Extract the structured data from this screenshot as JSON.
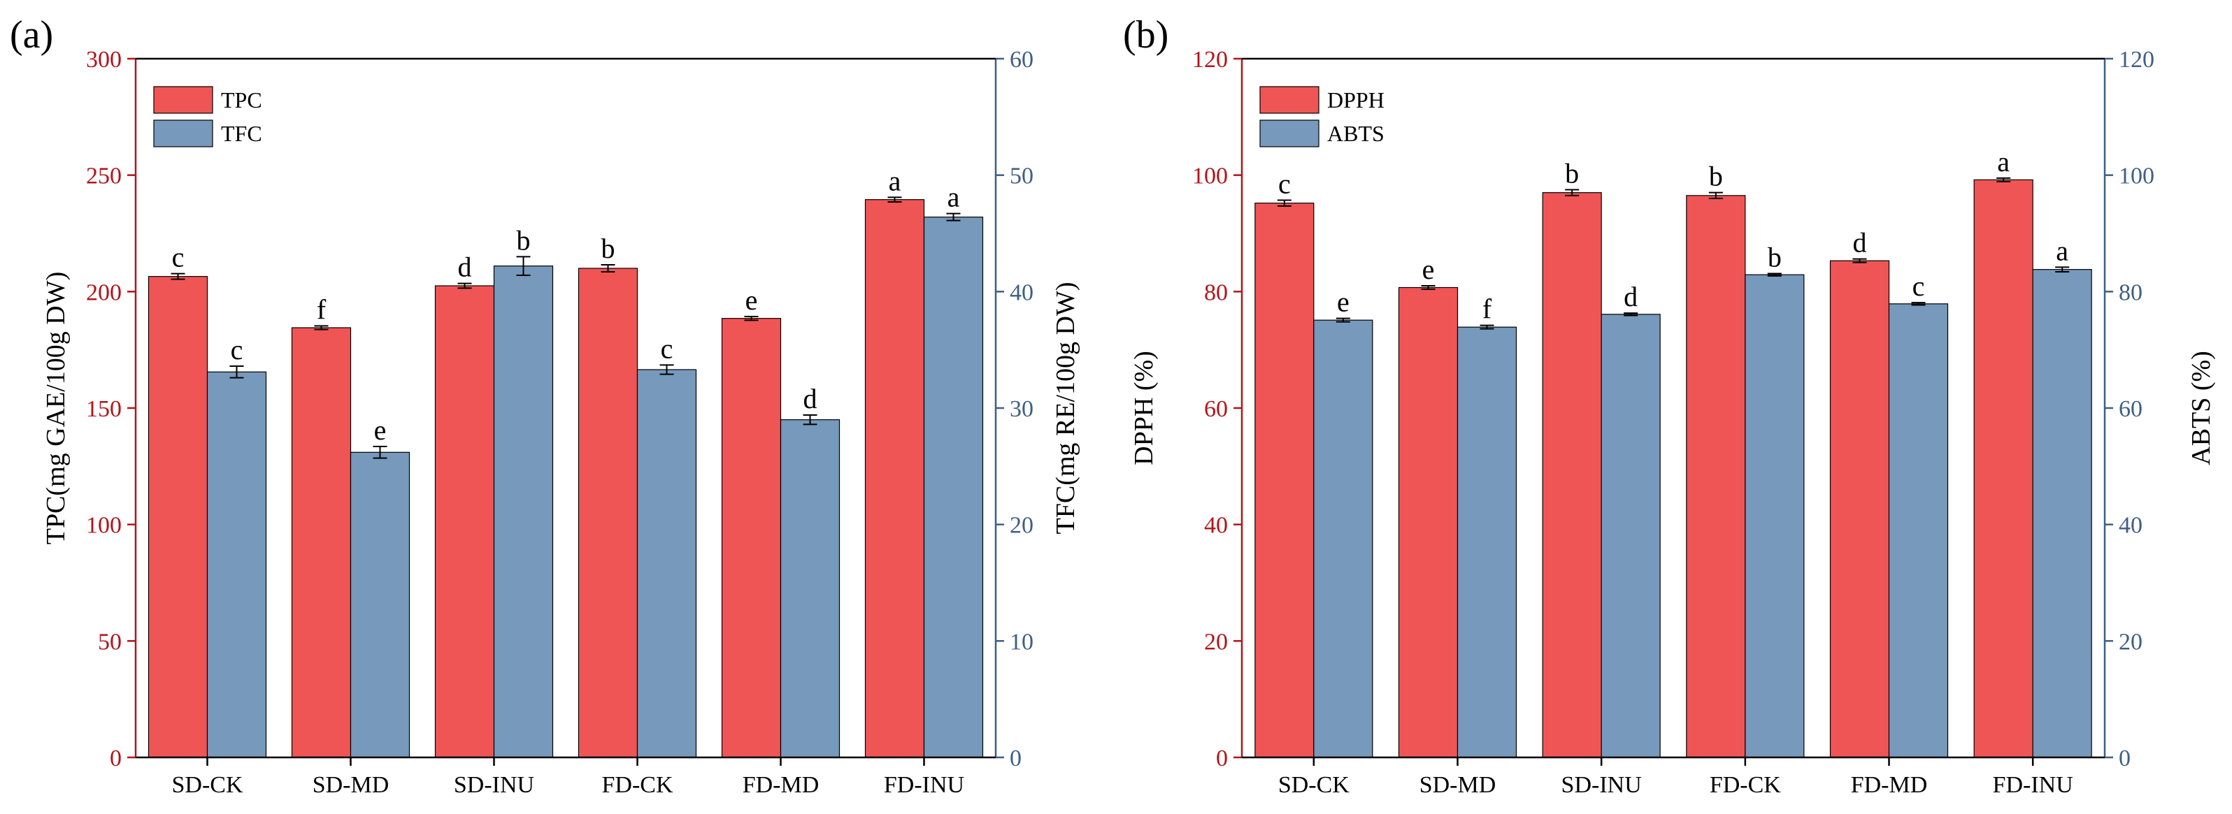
{
  "chart_data": [
    {
      "panel": "(a)",
      "type": "bar",
      "categories": [
        "SD-CK",
        "SD-MD",
        "SD-INU",
        "FD-CK",
        "FD-MD",
        "FD-INU"
      ],
      "y_left": {
        "label": "TPC(mg GAE/100g DW)",
        "lim": [
          0,
          300
        ],
        "ticks": [
          0,
          50,
          100,
          150,
          200,
          250,
          300
        ],
        "color": "#b2141a"
      },
      "y_right": {
        "label": "TFC(mg RE/100g DW)",
        "lim": [
          0,
          60
        ],
        "ticks": [
          0,
          10,
          20,
          30,
          40,
          50,
          60
        ],
        "color": "#3d5f85"
      },
      "series": [
        {
          "name": "TPC",
          "axis": "left",
          "color": "#f05555",
          "values": [
            206.5,
            184.5,
            202.5,
            210,
            188.5,
            239.5
          ],
          "errors": [
            1.2,
            0.8,
            1.0,
            1.5,
            0.8,
            1.0
          ],
          "letters": [
            "c",
            "f",
            "d",
            "b",
            "e",
            "a"
          ]
        },
        {
          "name": "TFC",
          "axis": "right",
          "color": "#7799bb",
          "values": [
            33.1,
            26.2,
            42.2,
            33.3,
            29.0,
            46.4
          ],
          "errors": [
            0.5,
            0.5,
            0.8,
            0.4,
            0.4,
            0.3
          ],
          "letters": [
            "c",
            "e",
            "b",
            "c",
            "d",
            "a"
          ]
        }
      ],
      "legend": "top-left"
    },
    {
      "panel": "(b)",
      "type": "bar",
      "categories": [
        "SD-CK",
        "SD-MD",
        "SD-INU",
        "FD-CK",
        "FD-MD",
        "FD-INU"
      ],
      "y_left": {
        "label": "DPPH (%)",
        "lim": [
          0,
          120
        ],
        "ticks": [
          0,
          20,
          40,
          60,
          80,
          100,
          120
        ],
        "color": "#b2141a"
      },
      "y_right": {
        "label": "ABTS (%)",
        "lim": [
          0,
          120
        ],
        "ticks": [
          0,
          20,
          40,
          60,
          80,
          100,
          120
        ],
        "color": "#3d5f85"
      },
      "series": [
        {
          "name": "DPPH",
          "axis": "left",
          "color": "#f05555",
          "values": [
            95.2,
            80.7,
            97.0,
            96.5,
            85.3,
            99.2
          ],
          "errors": [
            0.5,
            0.3,
            0.5,
            0.5,
            0.3,
            0.3
          ],
          "letters": [
            "c",
            "e",
            "b",
            "b",
            "d",
            "a"
          ]
        },
        {
          "name": "ABTS",
          "axis": "right",
          "color": "#7799bb",
          "values": [
            75.1,
            73.9,
            76.1,
            82.9,
            77.9,
            83.8
          ],
          "errors": [
            0.3,
            0.3,
            0.2,
            0.2,
            0.2,
            0.4
          ],
          "letters": [
            "e",
            "f",
            "d",
            "b",
            "c",
            "a"
          ]
        }
      ],
      "legend": "top-left"
    }
  ]
}
